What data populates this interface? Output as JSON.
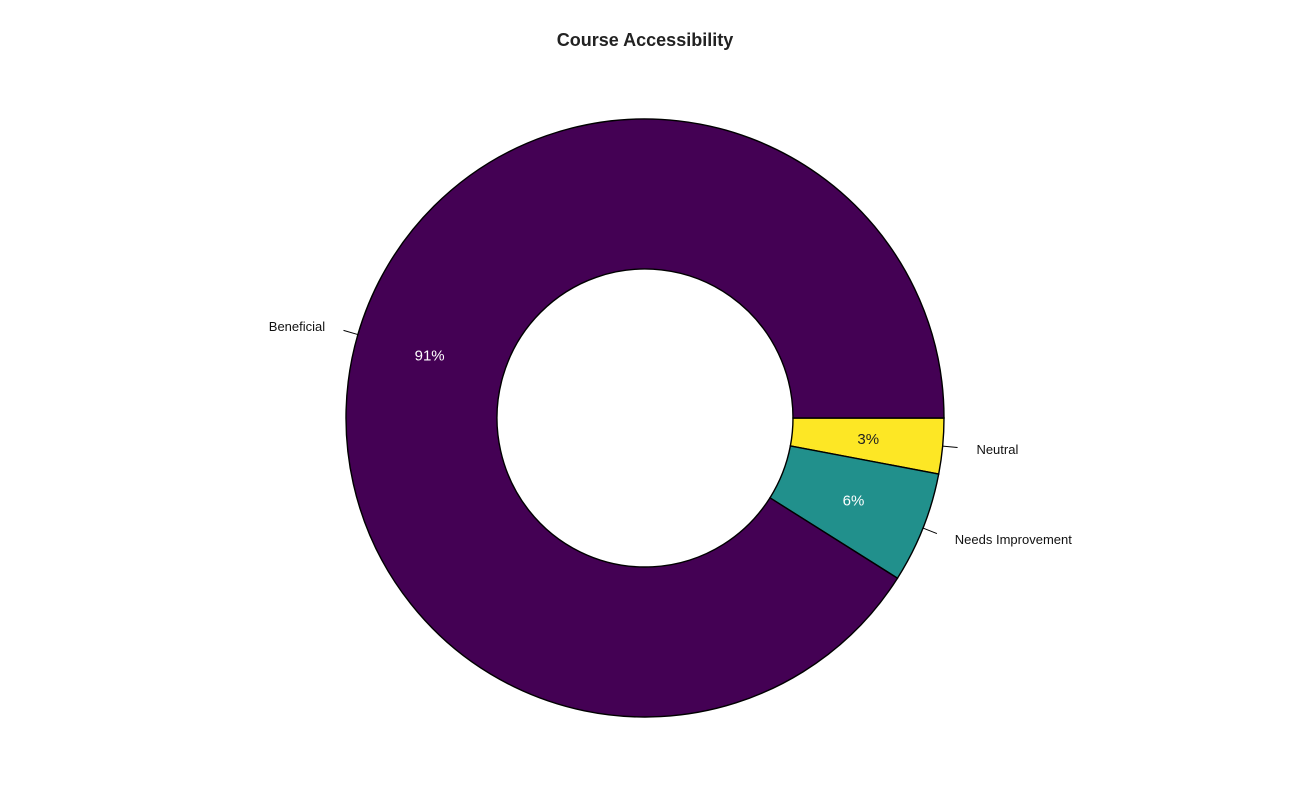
{
  "chart_data": {
    "type": "pie",
    "donut": true,
    "title": "Course Accessibility",
    "slices": [
      {
        "label": "Neutral",
        "value": 3,
        "value_label": "3%",
        "color": "#FDE725",
        "text_color": "#222222"
      },
      {
        "label": "Needs Improvement",
        "value": 6,
        "value_label": "6%",
        "color": "#21908C",
        "text_color": "#FFFFFF"
      },
      {
        "label": "Beneficial",
        "value": 91,
        "value_label": "91%",
        "color": "#440154",
        "text_color": "#FFFFFF"
      }
    ],
    "start": "3 o'clock",
    "direction": "clockwise",
    "legend": "none"
  }
}
